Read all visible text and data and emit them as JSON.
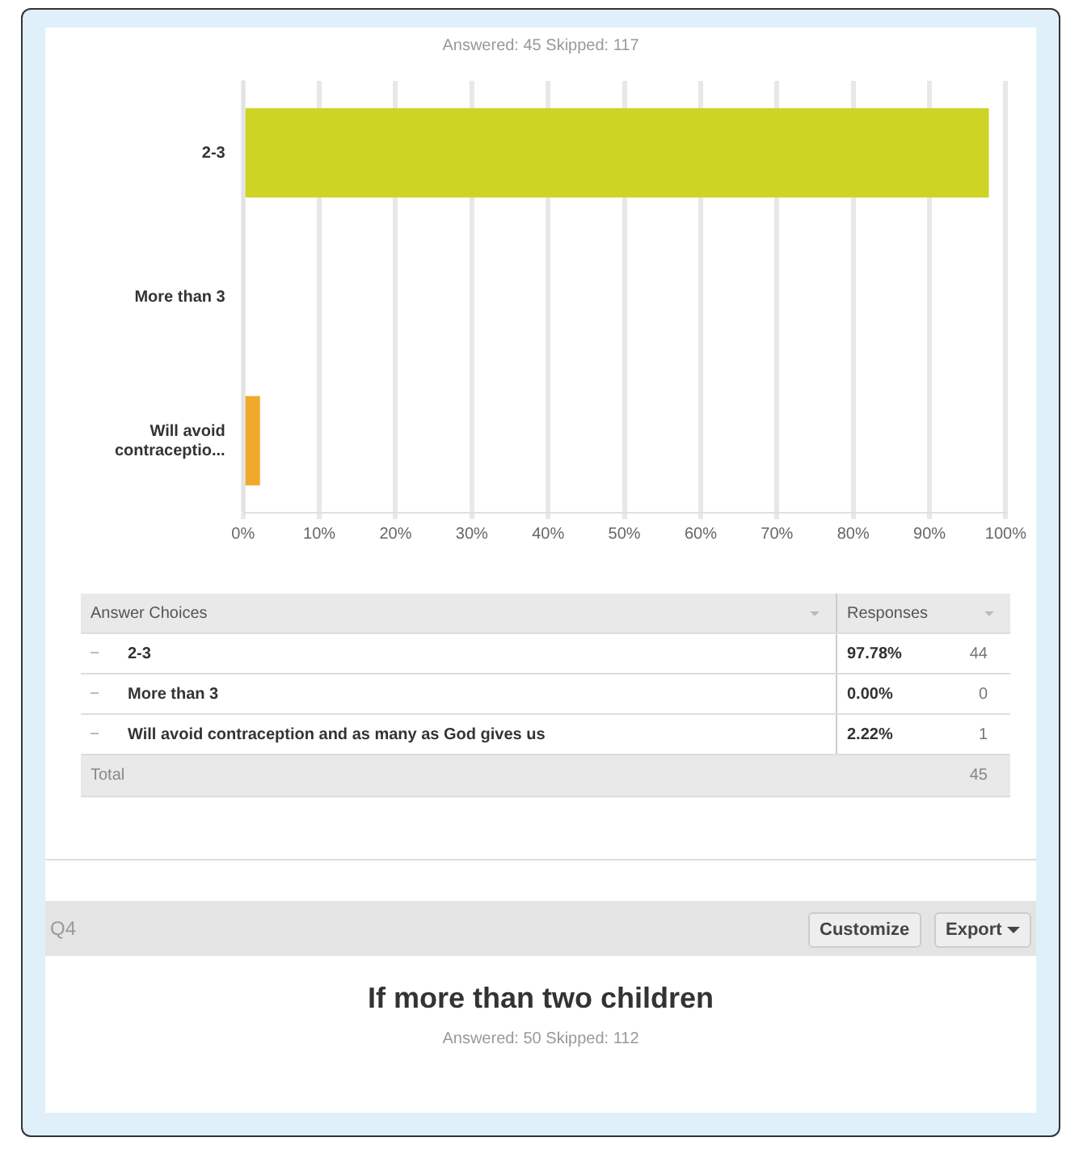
{
  "chart_data": {
    "type": "bar",
    "orientation": "horizontal",
    "subtitle": "Answered: 45    Skipped: 117",
    "categories": [
      "2-3",
      "More than 3",
      "Will avoid contraceptio..."
    ],
    "values": [
      97.78,
      0,
      2.22
    ],
    "colors": [
      "#cdd424",
      "#6fa8dc",
      "#f0a92a"
    ],
    "xlim": [
      0,
      100
    ],
    "xticks": [
      {
        "value": 0,
        "label": "0%"
      },
      {
        "value": 10,
        "label": "10%"
      },
      {
        "value": 20,
        "label": "20%"
      },
      {
        "value": 30,
        "label": "30%"
      },
      {
        "value": 40,
        "label": "40%"
      },
      {
        "value": 50,
        "label": "50%"
      },
      {
        "value": 60,
        "label": "60%"
      },
      {
        "value": 70,
        "label": "70%"
      },
      {
        "value": 80,
        "label": "80%"
      },
      {
        "value": 90,
        "label": "90%"
      },
      {
        "value": 100,
        "label": "100%"
      }
    ],
    "grid": "x",
    "legend": false,
    "annotations": [
      "Answer Choices",
      "Responses",
      "2-3",
      "More than 3",
      "Will avoid contraception and as many as God gives us",
      "44",
      "0",
      "1",
      "Total",
      "45",
      "Q4",
      "Customize",
      "Export",
      "If more than two children",
      "Answered: 50    Skipped: 112",
      "97.78%",
      "0.00%",
      "2.22%"
    ]
  }
}
